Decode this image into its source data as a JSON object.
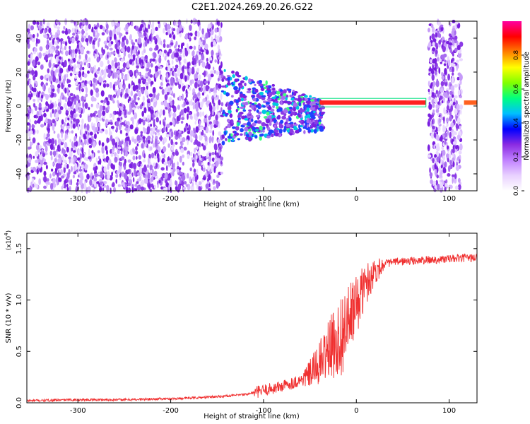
{
  "title": "C2E1.2024.269.20.26.G22",
  "chart_data": [
    {
      "type": "heatmap",
      "xlabel": "Height of straight line (km)",
      "ylabel": "Frequency (Hz)",
      "xlim": [
        -355,
        130
      ],
      "ylim": [
        -50,
        50
      ],
      "xticks": [
        -300,
        -200,
        -100,
        0,
        100
      ],
      "yticks": [
        -40,
        -20,
        0,
        20,
        40
      ],
      "colorbar": {
        "label": "Normalized spectral amplitude",
        "range": [
          0.0,
          1.0
        ],
        "ticks": [
          0.0,
          0.2,
          0.4,
          0.6,
          0.8
        ],
        "colors": [
          "#ffffff",
          "#e8d0ff",
          "#c080ff",
          "#8a2be2",
          "#0000ff",
          "#00bfff",
          "#00ff80",
          "#80ff00",
          "#ffff00",
          "#ff8000",
          "#ff0000",
          "#ff00a0"
        ]
      },
      "features": {
        "carrier_line": {
          "x_start": -40,
          "x_end": 75,
          "frequency": 2,
          "amplitude": 1.0
        },
        "clear_region": {
          "x_start": -145,
          "x_end": 78
        },
        "noise_band_right": {
          "x_start": 78,
          "x_end": 113
        }
      },
      "grid": false
    },
    {
      "type": "line",
      "xlabel": "Height of straight line (km)",
      "ylabel": "SNR (10 * v/v)",
      "ymultiplier": "(x10",
      "ymultiplier_exp": "4",
      "ymultiplier_close": ")",
      "xlim": [
        -355,
        130
      ],
      "ylim": [
        0,
        1.65
      ],
      "xticks": [
        -300,
        -200,
        -100,
        0,
        100
      ],
      "yticks": [
        "0.0",
        "0.5",
        "1.0",
        "1.5"
      ],
      "series": [
        {
          "color": "#f03030",
          "x": [
            -355,
            -300,
            -250,
            -200,
            -170,
            -150,
            -120,
            -100,
            -80,
            -60,
            -50,
            -40,
            -30,
            -20,
            -15,
            -10,
            -5,
            0,
            5,
            10,
            15,
            20,
            30,
            40,
            60,
            80,
            100,
            120,
            130
          ],
          "y": [
            0.02,
            0.03,
            0.03,
            0.04,
            0.05,
            0.06,
            0.08,
            0.12,
            0.16,
            0.22,
            0.28,
            0.38,
            0.52,
            0.6,
            0.68,
            0.75,
            0.85,
            0.95,
            1.05,
            1.15,
            1.22,
            1.28,
            1.35,
            1.37,
            1.38,
            1.39,
            1.4,
            1.41,
            1.41
          ]
        }
      ],
      "grid": false
    }
  ]
}
